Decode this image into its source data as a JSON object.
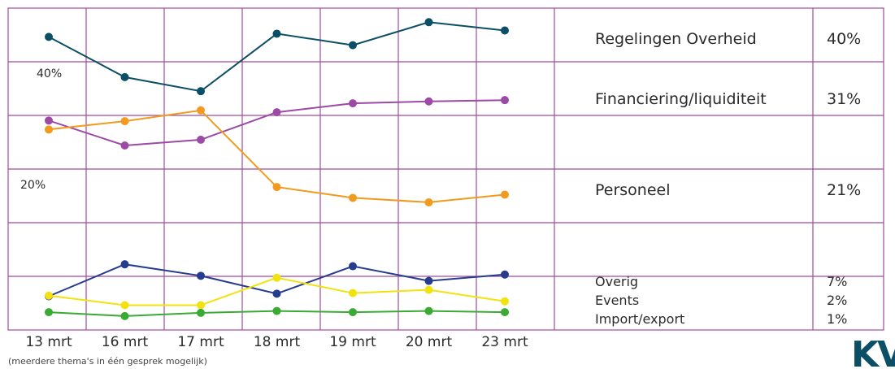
{
  "chart_data": {
    "type": "line",
    "categories": [
      "13 mrt",
      "16 mrt",
      "17 mrt",
      "18 mrt",
      "19 mrt",
      "20 mrt",
      "23 mrt"
    ],
    "y_tick_labels": [
      "40%",
      "20%"
    ],
    "ylim": [
      0,
      50
    ],
    "grid": true,
    "legend_placement": "right",
    "series": [
      {
        "name": "Regelingen Overheid",
        "share": "40%",
        "color": "#0b4f66",
        "values": [
          45.5,
          39.2,
          37.0,
          46.0,
          44.2,
          47.8,
          46.5
        ]
      },
      {
        "name": "Financiering/liquiditeit",
        "share": "31%",
        "color": "#9c4aa6",
        "values": [
          32.4,
          28.5,
          29.4,
          33.7,
          35.1,
          35.4,
          35.6
        ]
      },
      {
        "name": "Personeel",
        "share": "21%",
        "color": "#f29a1d",
        "values": [
          31.0,
          32.3,
          34.0,
          22.0,
          20.3,
          19.6,
          20.8
        ]
      },
      {
        "name": "Overig",
        "share": "7%",
        "color": "#253c8f",
        "values": [
          4.9,
          9.9,
          8.1,
          5.3,
          9.6,
          7.3,
          8.3
        ]
      },
      {
        "name": "Events",
        "share": "2%",
        "color": "#f2e20f",
        "values": [
          5.0,
          3.5,
          3.5,
          7.8,
          5.4,
          5.9,
          4.1
        ]
      },
      {
        "name": "Import/export",
        "share": "1%",
        "color": "#3aaa35",
        "values": [
          2.4,
          1.8,
          2.3,
          2.6,
          2.4,
          2.6,
          2.4
        ]
      }
    ]
  },
  "footnote": "(meerdere thema's in één gesprek mogelijk)",
  "logo": {
    "text": "KV",
    "color": "#0b4f66"
  }
}
